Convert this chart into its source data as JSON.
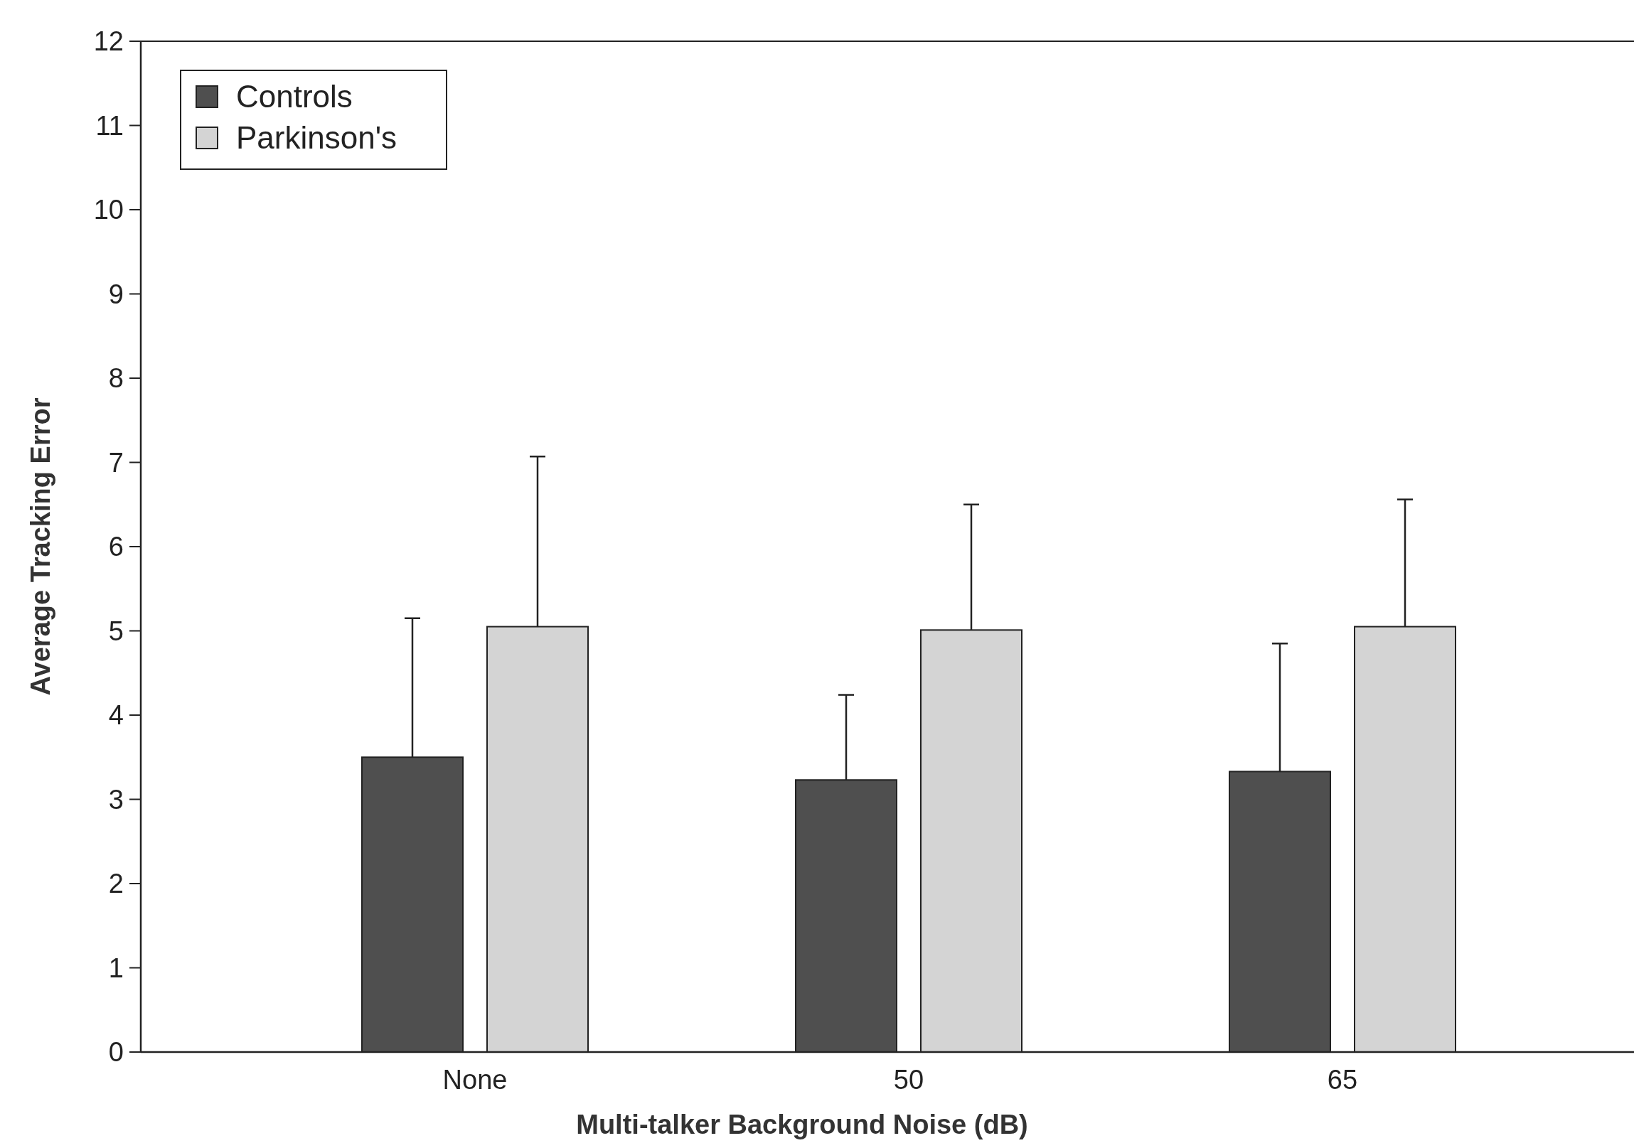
{
  "chart_data": {
    "type": "bar",
    "xlabel": "Multi-talker Background Noise (dB)",
    "ylabel": "Average Tracking Error",
    "categories": [
      "None",
      "50",
      "65"
    ],
    "series": [
      {
        "name": "Controls",
        "color": "#4f4f4f",
        "values": [
          3.5,
          3.23,
          3.33
        ],
        "errors": [
          [
            3.5,
            5.15
          ],
          [
            3.23,
            4.24
          ],
          [
            3.33,
            4.85
          ]
        ]
      },
      {
        "name": "Parkinson's",
        "color": "#d4d4d4",
        "values": [
          5.05,
          5.01,
          5.05
        ],
        "errors": [
          [
            5.05,
            7.07
          ],
          [
            5.01,
            6.5
          ],
          [
            5.05,
            6.56
          ]
        ]
      }
    ],
    "ylim": [
      0,
      12
    ],
    "yticks": [
      0,
      1,
      2,
      3,
      4,
      5,
      6,
      7,
      8,
      9,
      10,
      11,
      12
    ],
    "grid": false,
    "legend": "top left"
  }
}
